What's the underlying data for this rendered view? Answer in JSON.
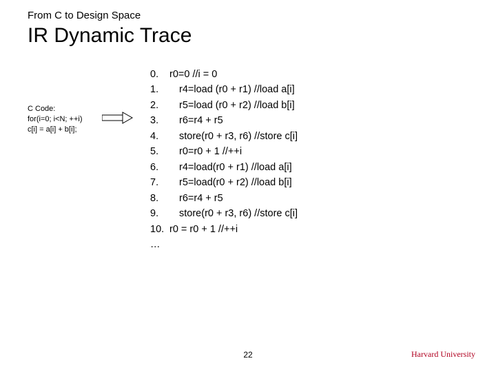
{
  "subtitle": "From C to Design Space",
  "title": "IR Dynamic Trace",
  "ccode": {
    "label": "C Code:",
    "lines": [
      "for(i=0; i<N; ++i)",
      " c[i] = a[i] + b[i];"
    ]
  },
  "trace": {
    "rows": [
      {
        "n": "0.",
        "indent": false,
        "text": "r0=0  //i = 0"
      },
      {
        "n": "1.",
        "indent": true,
        "text": "r4=load (r0 + r1) //load a[i]"
      },
      {
        "n": "2.",
        "indent": true,
        "text": "r5=load (r0 + r2) //load b[i]"
      },
      {
        "n": "3.",
        "indent": true,
        "text": "r6=r4 + r5"
      },
      {
        "n": "4.",
        "indent": true,
        "text": "store(r0 + r3, r6) //store c[i]"
      },
      {
        "n": "5.",
        "indent": true,
        "text": "r0=r0 + 1  //++i"
      },
      {
        "n": "6.",
        "indent": true,
        "text": "r4=load(r0 + r1) //load a[i]"
      },
      {
        "n": "7.",
        "indent": true,
        "text": "r5=load(r0 + r2) //load b[i]"
      },
      {
        "n": "8.",
        "indent": true,
        "text": "r6=r4 + r5"
      },
      {
        "n": "9.",
        "indent": true,
        "text": "store(r0 + r3, r6) //store c[i]"
      },
      {
        "n": "10.",
        "indent": false,
        "text": "r0 = r0 + 1  //++i"
      },
      {
        "n": "…",
        "indent": false,
        "text": ""
      }
    ]
  },
  "page_number": "22",
  "footer_right": "Harvard University",
  "colors": {
    "footer_right": "#b00020",
    "arrow_stroke": "#000000"
  }
}
